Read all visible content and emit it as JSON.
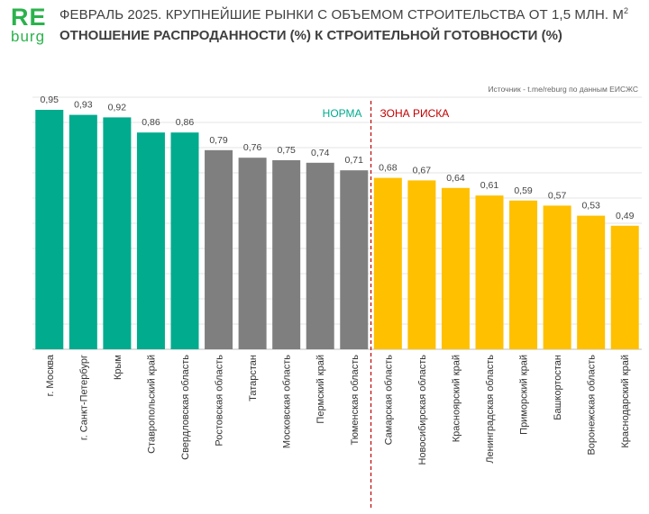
{
  "logo": {
    "part1": "RE",
    "part2": "burg"
  },
  "header": {
    "title": "ФЕВРАЛЬ 2025. КРУПНЕЙШИЕ РЫНКИ С ОБЪЕМОМ СТРОИТЕЛЬСТВА ОТ 1,5 МЛН. М",
    "title_sup": "2",
    "subtitle": "ОТНОШЕНИЕ РАСПРОДАННОСТИ (%) К СТРОИТЕЛЬНОЙ ГОТОВНОСТИ (%)"
  },
  "source": "Источник - t.me/reburg по данным ЕИСЖС",
  "chart_data": {
    "type": "bar",
    "categories": [
      "г. Москва",
      "г. Санкт-Петербург",
      "Крым",
      "Ставропольский край",
      "Свердловская область",
      "Ростовская область",
      "Татарстан",
      "Московская область",
      "Пермский край",
      "Тюменская область",
      "Самарская область",
      "Новосибирская область",
      "Красноярский край",
      "Ленинградская область",
      "Приморский край",
      "Башкортостан",
      "Воронежская область",
      "Краснодарский край"
    ],
    "values": [
      0.95,
      0.93,
      0.92,
      0.86,
      0.86,
      0.79,
      0.76,
      0.75,
      0.74,
      0.71,
      0.68,
      0.67,
      0.64,
      0.61,
      0.59,
      0.57,
      0.53,
      0.49
    ],
    "value_labels": [
      "0,95",
      "0,93",
      "0,92",
      "0,86",
      "0,86",
      "0,79",
      "0,76",
      "0,75",
      "0,74",
      "0,71",
      "0,68",
      "0,67",
      "0,64",
      "0,61",
      "0,59",
      "0,57",
      "0,53",
      "0,49"
    ],
    "bar_groups": [
      "green",
      "green",
      "green",
      "green",
      "green",
      "gray",
      "gray",
      "gray",
      "gray",
      "gray",
      "yellow",
      "yellow",
      "yellow",
      "yellow",
      "yellow",
      "yellow",
      "yellow",
      "yellow"
    ],
    "colors": {
      "green": "#00ab8e",
      "gray": "#7f7f7f",
      "yellow": "#ffc000",
      "norm_label": "#00ab8e",
      "risk_label": "#c00000",
      "divider": "#c00000",
      "grid": "#e6e6e6"
    },
    "ylim": [
      0,
      1
    ],
    "grid": true,
    "zones": {
      "norm_label": "НОРМА",
      "risk_label": "ЗОНА РИСКА",
      "divider_after_index": 9
    },
    "title": "ФЕВРАЛЬ 2025. КРУПНЕЙШИЕ РЫНКИ С ОБЪЕМОМ СТРОИТЕЛЬСТВА ОТ 1,5 МЛН. М2",
    "xlabel": "",
    "ylabel": ""
  }
}
